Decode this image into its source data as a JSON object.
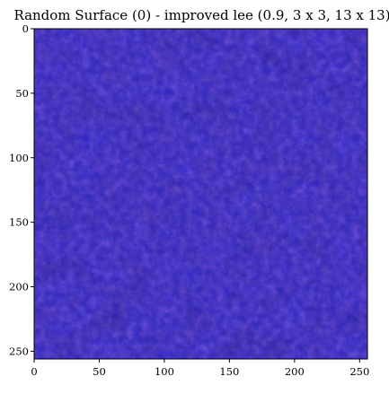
{
  "chart_data": {
    "type": "heatmap",
    "title": "Random Surface (0) - improved lee (0.9, 3 x 3, 13 x 13)",
    "xlabel": "",
    "ylabel": "",
    "xlim": [
      0,
      256
    ],
    "ylim": [
      256,
      0
    ],
    "x_ticks": [
      0,
      50,
      100,
      150,
      200,
      250
    ],
    "y_ticks": [
      0,
      50,
      100,
      150,
      200,
      250
    ],
    "x_tick_labels": [
      "0",
      "50",
      "100",
      "150",
      "200",
      "250"
    ],
    "y_tick_labels": [
      "0",
      "50",
      "100",
      "150",
      "200",
      "250"
    ],
    "grid": false,
    "image_size": [
      256,
      256
    ],
    "colors": {
      "base": "#2a24c8",
      "dark": "#1c1b78",
      "light": "#3a3cf0",
      "purple_tint": "#3a2aa0"
    }
  }
}
